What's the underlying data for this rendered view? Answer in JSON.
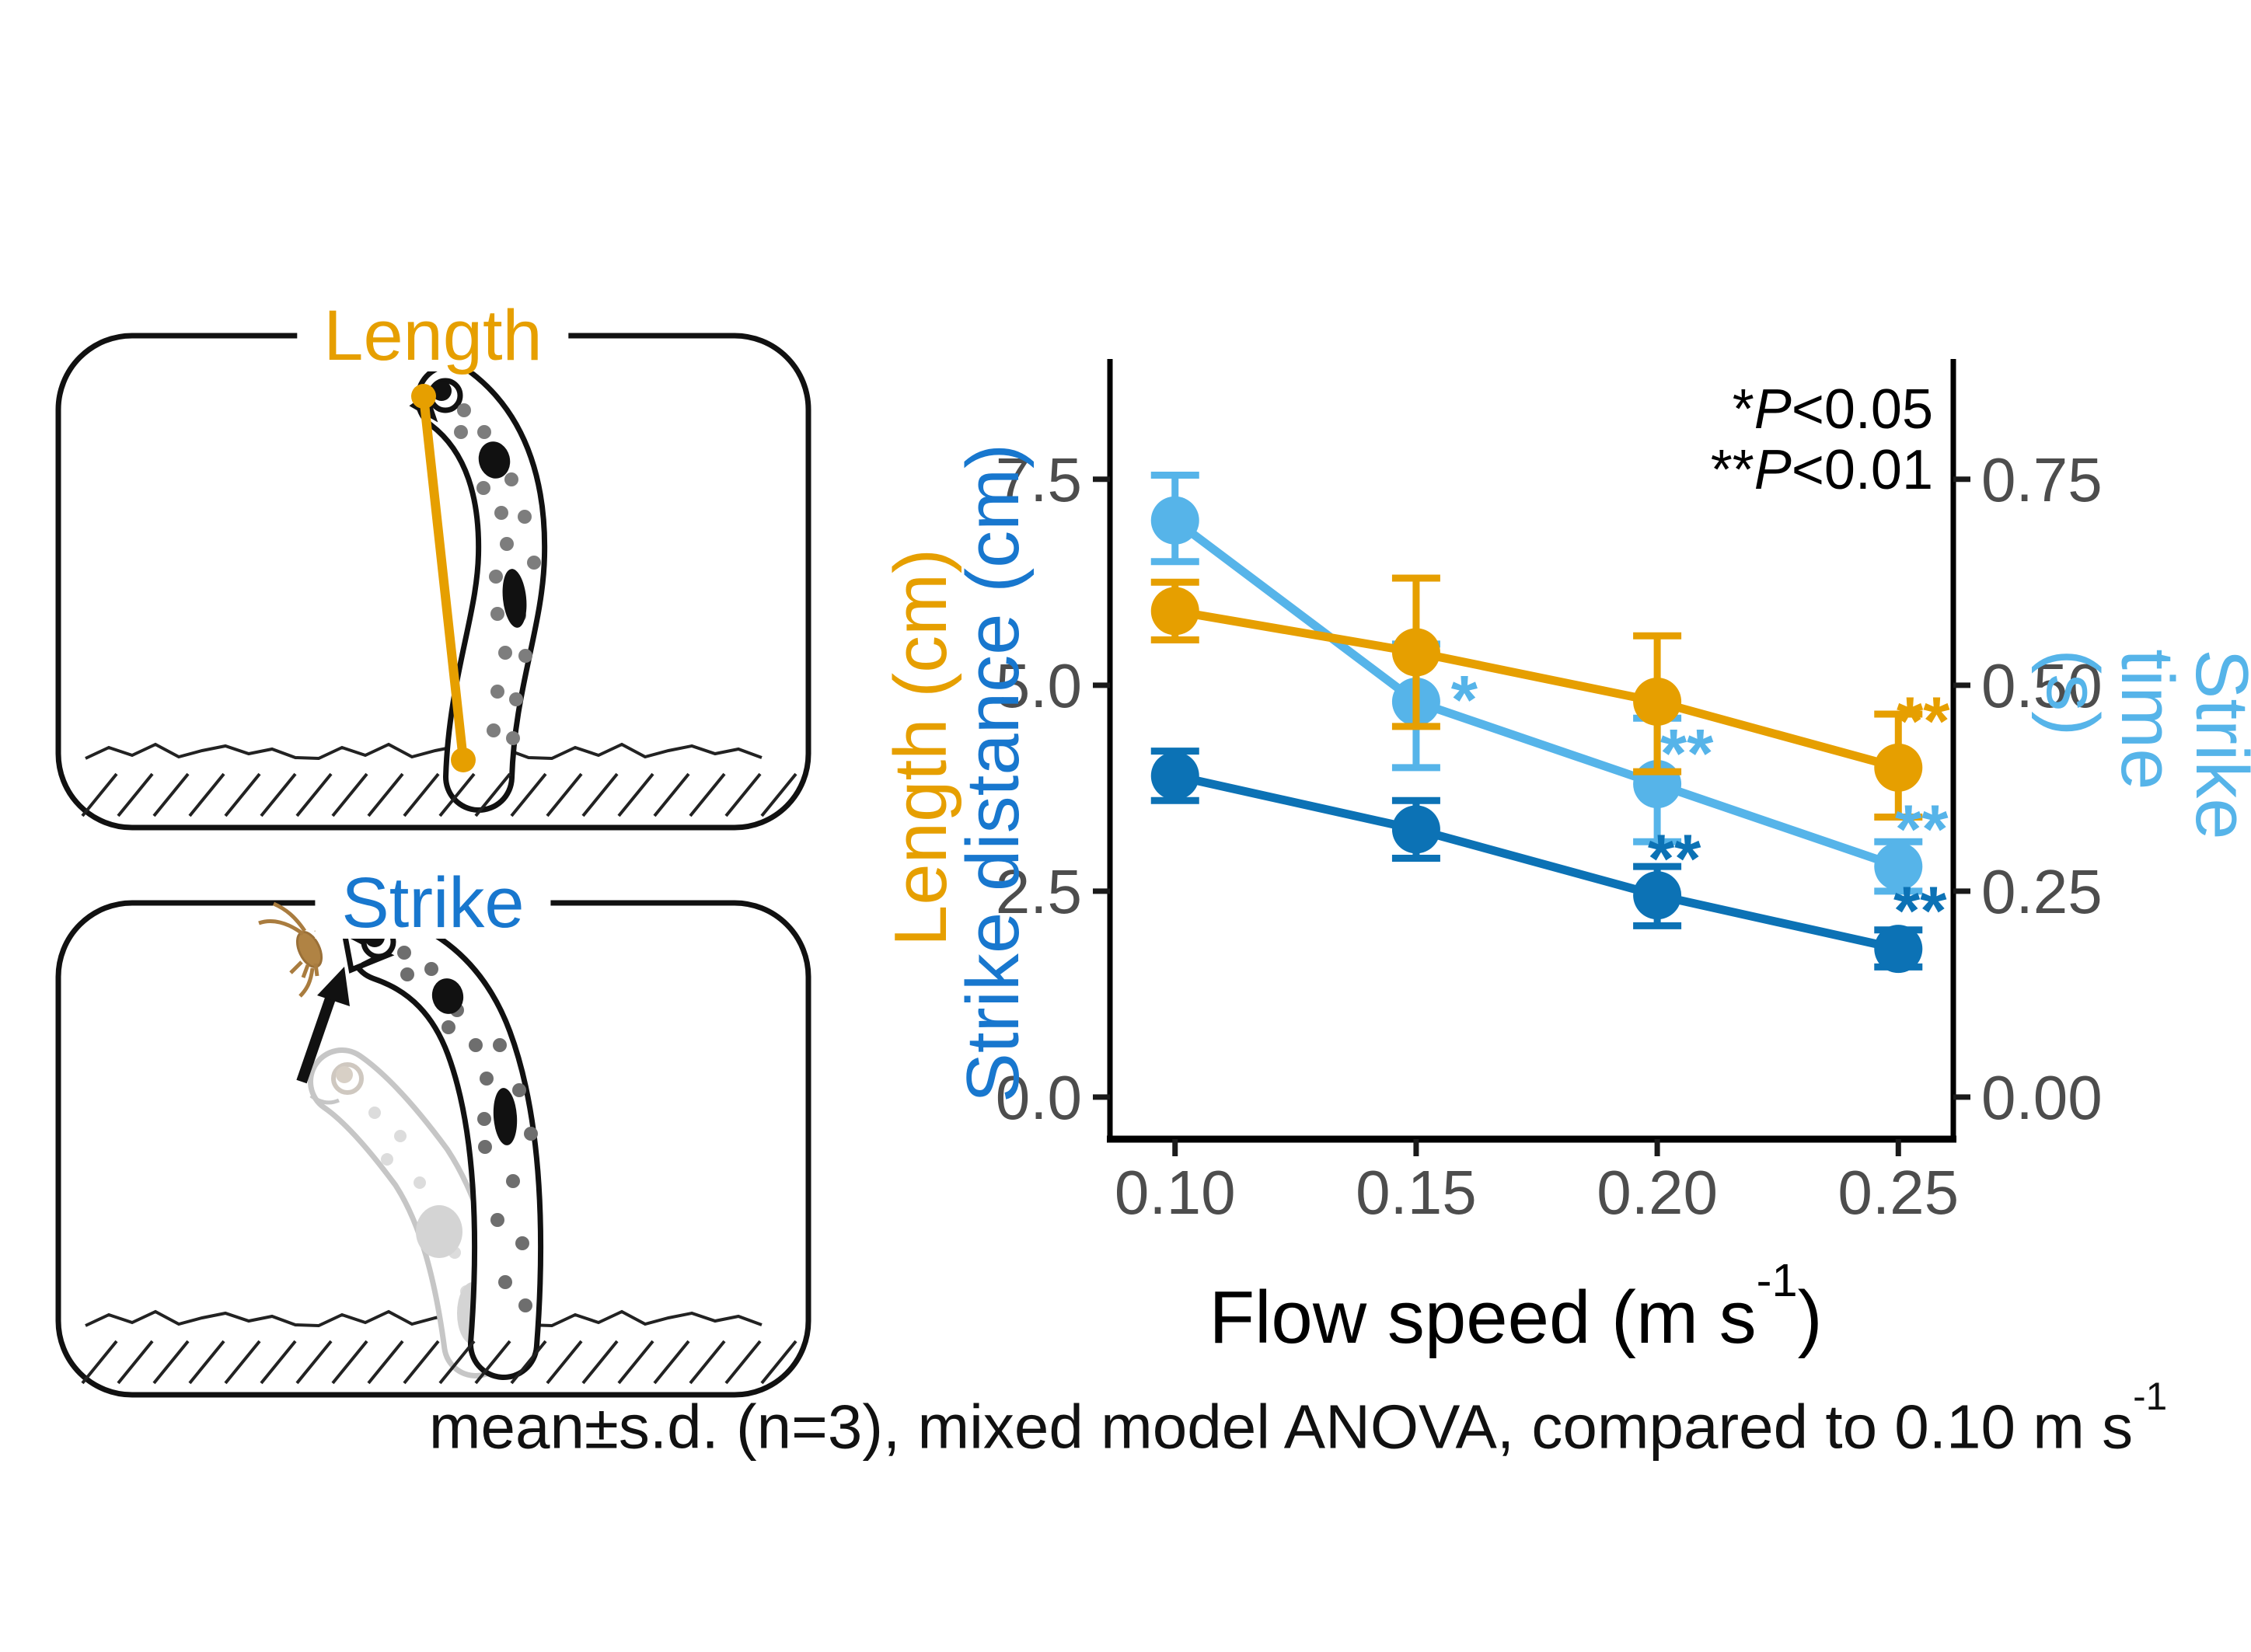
{
  "panels": {
    "length": {
      "title": "Length"
    },
    "strike": {
      "title": "Strike"
    }
  },
  "caption": {
    "text": "mean±s.d. (n=3), mixed model ANOVA, compared to 0.10 m s",
    "sup": "-1"
  },
  "colors": {
    "orange": "#E69F00",
    "dark_blue": "#0C72B5",
    "light_blue": "#56B4E9",
    "title_blue": "#1877CE",
    "axis_text": "#4D4D4D",
    "axis_line": "#000000"
  },
  "chart_data": {
    "type": "line",
    "x": [
      0.1,
      0.15,
      0.2,
      0.25
    ],
    "x_tick_labels": [
      "0.10",
      "0.15",
      "0.20",
      "0.25"
    ],
    "xlim": [
      0.0865,
      0.2614
    ],
    "xlabel": {
      "text": "Flow speed (m s",
      "sup": "-1",
      "suffix": ")"
    },
    "left_axis": {
      "titles": [
        {
          "text": "Length (cm)",
          "color": "#E69F00"
        },
        {
          "text": "Strike distance (cm)",
          "color": "#1877CE"
        }
      ],
      "ticks": [
        0.0,
        2.5,
        5.0,
        7.5
      ],
      "tick_labels": [
        "0.0",
        "2.5",
        "5.0",
        "7.5"
      ],
      "lim": [
        -0.51,
        8.96
      ]
    },
    "right_axis": {
      "title": {
        "text": "Strike time (s)",
        "color": "#56B4E9"
      },
      "ticks": [
        0.0,
        0.25,
        0.5,
        0.75
      ],
      "tick_labels": [
        "0.00",
        "0.25",
        "0.50",
        "0.75"
      ],
      "lim": [
        -0.051,
        0.896
      ]
    },
    "series": [
      {
        "name": "Strike distance",
        "axis": "left",
        "color": "#0C72B5",
        "values": [
          3.9,
          3.25,
          2.45,
          1.8
        ],
        "err_lo": [
          3.6,
          2.9,
          2.08,
          1.58
        ],
        "err_hi": [
          4.2,
          3.6,
          2.8,
          2.03
        ]
      },
      {
        "name": "Strike time",
        "axis": "right",
        "color": "#56B4E9",
        "values": [
          0.7,
          0.48,
          0.38,
          0.28
        ],
        "err_lo": [
          0.65,
          0.4,
          0.31,
          0.25
        ],
        "err_hi": [
          0.755,
          0.55,
          0.46,
          0.31
        ]
      },
      {
        "name": "Length",
        "axis": "left",
        "color": "#E69F00",
        "values": [
          5.9,
          5.4,
          4.8,
          4.0
        ],
        "err_lo": [
          5.55,
          4.5,
          3.95,
          3.4
        ],
        "err_hi": [
          6.25,
          6.3,
          5.6,
          4.65
        ]
      }
    ],
    "sig_marks": [
      {
        "series": "Strike time",
        "xi": 1,
        "label": "*",
        "y": 0.49,
        "dx": 62
      },
      {
        "series": "Strike time",
        "xi": 2,
        "label": "**",
        "y": 0.425,
        "dx": 38
      },
      {
        "series": "Strike distance",
        "xi": 2,
        "label": "**",
        "y": 2.97,
        "dx": 22
      },
      {
        "series": "Length",
        "xi": 3,
        "label": "**",
        "y": 4.64,
        "dx": 32
      },
      {
        "series": "Strike time",
        "xi": 3,
        "label": "**",
        "y": 0.333,
        "dx": 30
      },
      {
        "series": "Strike distance",
        "xi": 3,
        "label": "**",
        "y": 2.34,
        "dx": 28
      }
    ],
    "legend_lines": [
      {
        "stars": "*",
        "p": "P",
        "rest": "<0.05"
      },
      {
        "stars": "**",
        "p": "P",
        "rest": "<0.01"
      }
    ]
  }
}
